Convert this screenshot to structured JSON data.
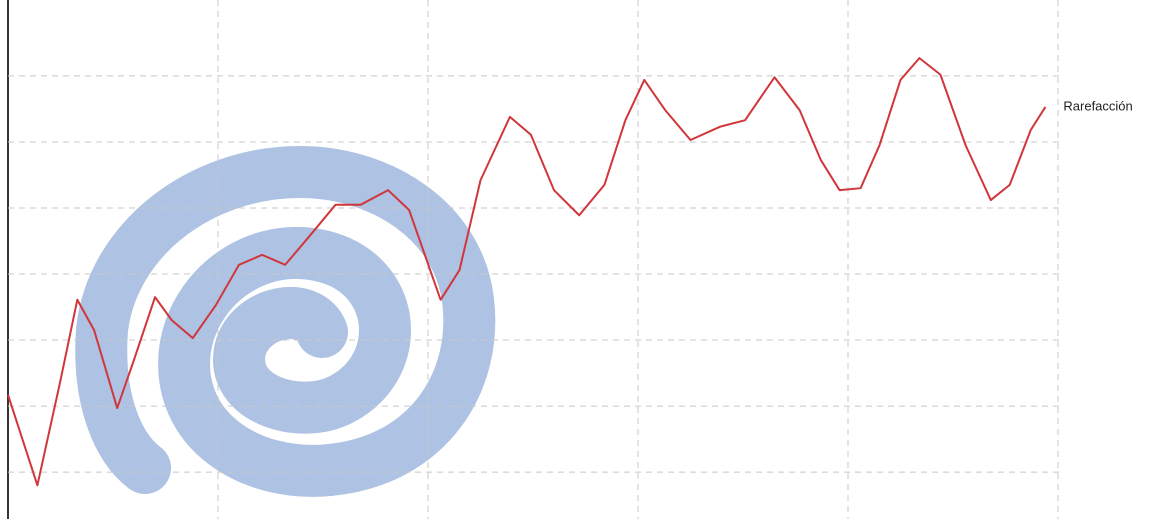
{
  "chart_data": {
    "type": "line",
    "series": [
      {
        "name": "Rarefacción",
        "color": "#d0363a",
        "x": [
          0,
          0.14,
          0.25,
          0.33,
          0.41,
          0.52,
          0.6,
          0.7,
          0.78,
          0.88,
          0.99,
          1.1,
          1.21,
          1.32,
          1.44,
          1.56,
          1.68,
          1.81,
          1.91,
          2.06,
          2.15,
          2.25,
          2.39,
          2.49,
          2.6,
          2.72,
          2.84,
          2.94,
          3.03,
          3.13,
          3.25,
          3.39,
          3.51,
          3.65,
          3.77,
          3.87,
          3.96,
          4.06,
          4.15,
          4.25,
          4.34,
          4.44,
          4.56,
          4.68,
          4.77,
          4.87,
          4.94
        ],
        "values": [
          2.17,
          0.8,
          2.39,
          3.61,
          3.15,
          1.97,
          2.7,
          3.65,
          3.3,
          3.03,
          3.53,
          4.14,
          4.29,
          4.14,
          4.59,
          5.05,
          5.05,
          5.27,
          4.97,
          3.61,
          4.06,
          5.42,
          6.38,
          6.11,
          5.27,
          4.89,
          5.35,
          6.33,
          6.94,
          6.48,
          6.03,
          6.23,
          6.33,
          6.98,
          6.48,
          5.73,
          5.27,
          5.3,
          5.95,
          6.94,
          7.27,
          7.02,
          5.95,
          5.12,
          5.35,
          6.18,
          6.53
        ]
      }
    ],
    "xlim": [
      0,
      5.56
    ],
    "xticks": [
      1,
      2,
      3,
      4,
      5
    ],
    "ylim": [
      0.29,
      8.15
    ],
    "yticks": [
      1,
      2,
      3,
      4,
      5,
      6,
      7
    ],
    "grid": true
  }
}
